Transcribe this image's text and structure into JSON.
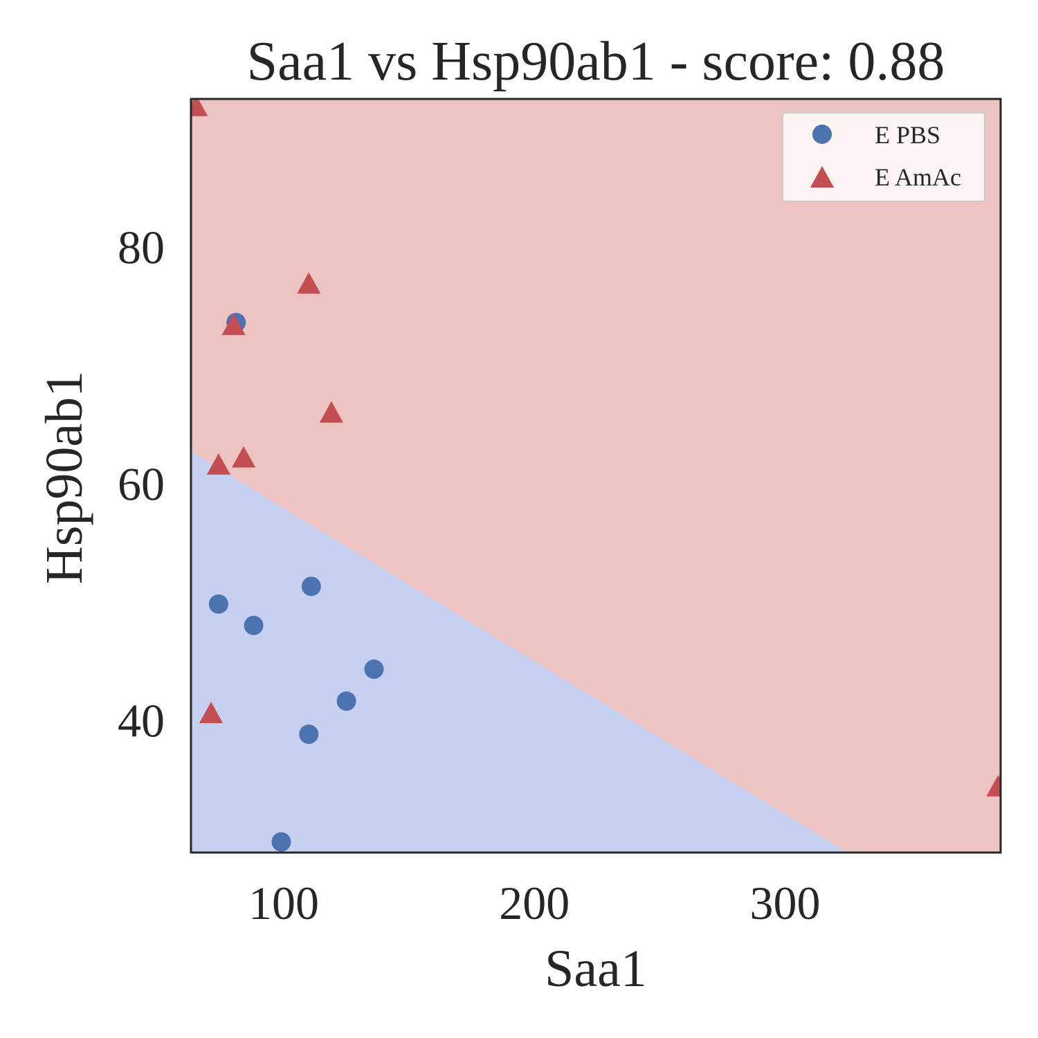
{
  "chart_data": {
    "type": "scatter",
    "title": "Saa1 vs Hsp90ab1 - score: 0.88",
    "xlabel": "Saa1",
    "ylabel": "Hsp90ab1",
    "xlim": [
      63,
      386
    ],
    "ylim": [
      28.8,
      92.5
    ],
    "xticks": [
      100,
      200,
      300
    ],
    "yticks": [
      40,
      60,
      80
    ],
    "grid": false,
    "legend_position": "top-right",
    "decision_regions": {
      "boundary": [
        [
          63,
          62.7
        ],
        [
          325,
          28.8
        ]
      ],
      "lower_region_class": "E PBS",
      "upper_region_class": "E AmAc",
      "lower_color": "#c8d0f1",
      "upper_color": "#eec4c3"
    },
    "series": [
      {
        "name": "E PBS",
        "marker": "circle",
        "color": "#4c72b0",
        "points": [
          [
            81,
            73.6
          ],
          [
            74,
            49.8
          ],
          [
            88,
            48.0
          ],
          [
            111,
            51.3
          ],
          [
            136,
            44.3
          ],
          [
            125,
            41.6
          ],
          [
            110,
            38.8
          ],
          [
            99,
            29.7
          ]
        ]
      },
      {
        "name": "E AmAc",
        "marker": "triangle",
        "color": "#c44e52",
        "points": [
          [
            65,
            91.8
          ],
          [
            110,
            76.8
          ],
          [
            80,
            73.3
          ],
          [
            119,
            65.9
          ],
          [
            74,
            61.5
          ],
          [
            84,
            62.1
          ],
          [
            71,
            40.5
          ],
          [
            385,
            34.3
          ]
        ]
      }
    ]
  }
}
